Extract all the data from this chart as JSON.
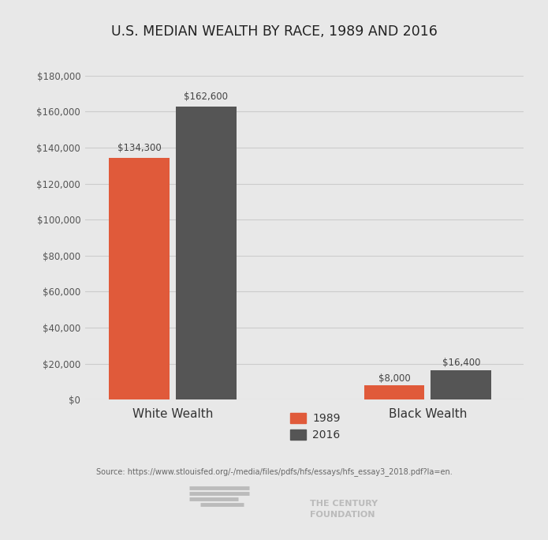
{
  "title": "U.S. MEDIAN WEALTH BY RACE, 1989 AND 2016",
  "categories": [
    "White Wealth",
    "Black Wealth"
  ],
  "years": [
    "1989",
    "2016"
  ],
  "values": {
    "White Wealth": [
      134300,
      162600
    ],
    "Black Wealth": [
      8000,
      16400
    ]
  },
  "bar_colors": [
    "#e05a3a",
    "#555555"
  ],
  "background_color": "#e8e8e8",
  "plot_bg_color": "#e8e8e8",
  "ylim": [
    0,
    180000
  ],
  "yticks": [
    0,
    20000,
    40000,
    60000,
    80000,
    100000,
    120000,
    140000,
    160000,
    180000
  ],
  "grid_color": "#cccccc",
  "bar_width": 0.38,
  "source_text": "Source: https://www.stlouisfed.org/-/media/files/pdfs/hfs/essays/hfs_essay3_2018.pdf?la=en.",
  "legend_labels": [
    "1989",
    "2016"
  ],
  "value_labels": {
    "White Wealth": [
      "$134,300",
      "$162,600"
    ],
    "Black Wealth": [
      "$8,000",
      "$16,400"
    ]
  },
  "group_positions": [
    1.0,
    2.6
  ],
  "bar_gap": 0.04
}
